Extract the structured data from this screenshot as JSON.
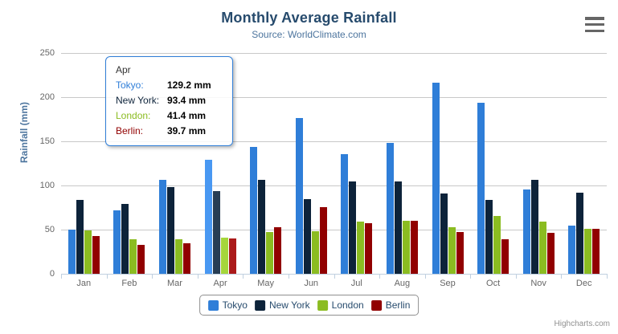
{
  "header": {
    "title": "Monthly Average Rainfall",
    "subtitle": "Source: WorldClimate.com"
  },
  "chart_data": {
    "type": "bar",
    "title": "Monthly Average Rainfall",
    "subtitle": "Source: WorldClimate.com",
    "xlabel": "",
    "ylabel": "Rainfall (mm)",
    "ylim": [
      0,
      250
    ],
    "y_ticks": [
      0,
      50,
      100,
      150,
      200,
      250
    ],
    "grid": true,
    "legend_position": "bottom",
    "categories": [
      "Jan",
      "Feb",
      "Mar",
      "Apr",
      "May",
      "Jun",
      "Jul",
      "Aug",
      "Sep",
      "Oct",
      "Nov",
      "Dec"
    ],
    "series": [
      {
        "name": "Tokyo",
        "color": "#2f7ed8",
        "hover_color": "#4998f2",
        "values": [
          49.9,
          71.5,
          106.4,
          129.2,
          144.0,
          176.0,
          135.6,
          148.5,
          216.4,
          194.1,
          95.6,
          54.4
        ]
      },
      {
        "name": "New York",
        "color": "#0d233a",
        "hover_color": "#273d54",
        "values": [
          83.6,
          78.8,
          98.5,
          93.4,
          106.0,
          84.5,
          105.0,
          104.3,
          91.2,
          83.5,
          106.6,
          92.3
        ]
      },
      {
        "name": "London",
        "color": "#8bbc21",
        "hover_color": "#a5d63b",
        "values": [
          48.9,
          38.8,
          39.3,
          41.4,
          47.0,
          48.3,
          59.0,
          59.6,
          52.4,
          65.2,
          59.3,
          51.2
        ]
      },
      {
        "name": "Berlin",
        "color": "#910000",
        "hover_color": "#ab1a1a",
        "values": [
          42.4,
          33.2,
          34.5,
          39.7,
          52.6,
          75.5,
          57.4,
          60.4,
          47.6,
          39.1,
          46.8,
          51.1
        ]
      }
    ],
    "hovered_category_index": 3
  },
  "tooltip": {
    "header": "Apr",
    "rows": [
      {
        "label": "Tokyo",
        "value": "129.2 mm"
      },
      {
        "label": "New York",
        "value": "93.4 mm"
      },
      {
        "label": "London",
        "value": "41.4 mm"
      },
      {
        "label": "Berlin",
        "value": "39.7 mm"
      }
    ],
    "border_color": "#2f7ed8"
  },
  "export_menu": {
    "icon": "hamburger-icon"
  },
  "credits": {
    "text": "Highcharts.com"
  },
  "colors": {
    "title": "#274b6d",
    "subtitle": "#4d759e",
    "axis_title": "#4d759e",
    "axis_label": "#666666",
    "grid_line": "#c8c8c8",
    "axis_line": "#c0d0e0",
    "legend_border": "#909090",
    "credits": "#909090"
  }
}
